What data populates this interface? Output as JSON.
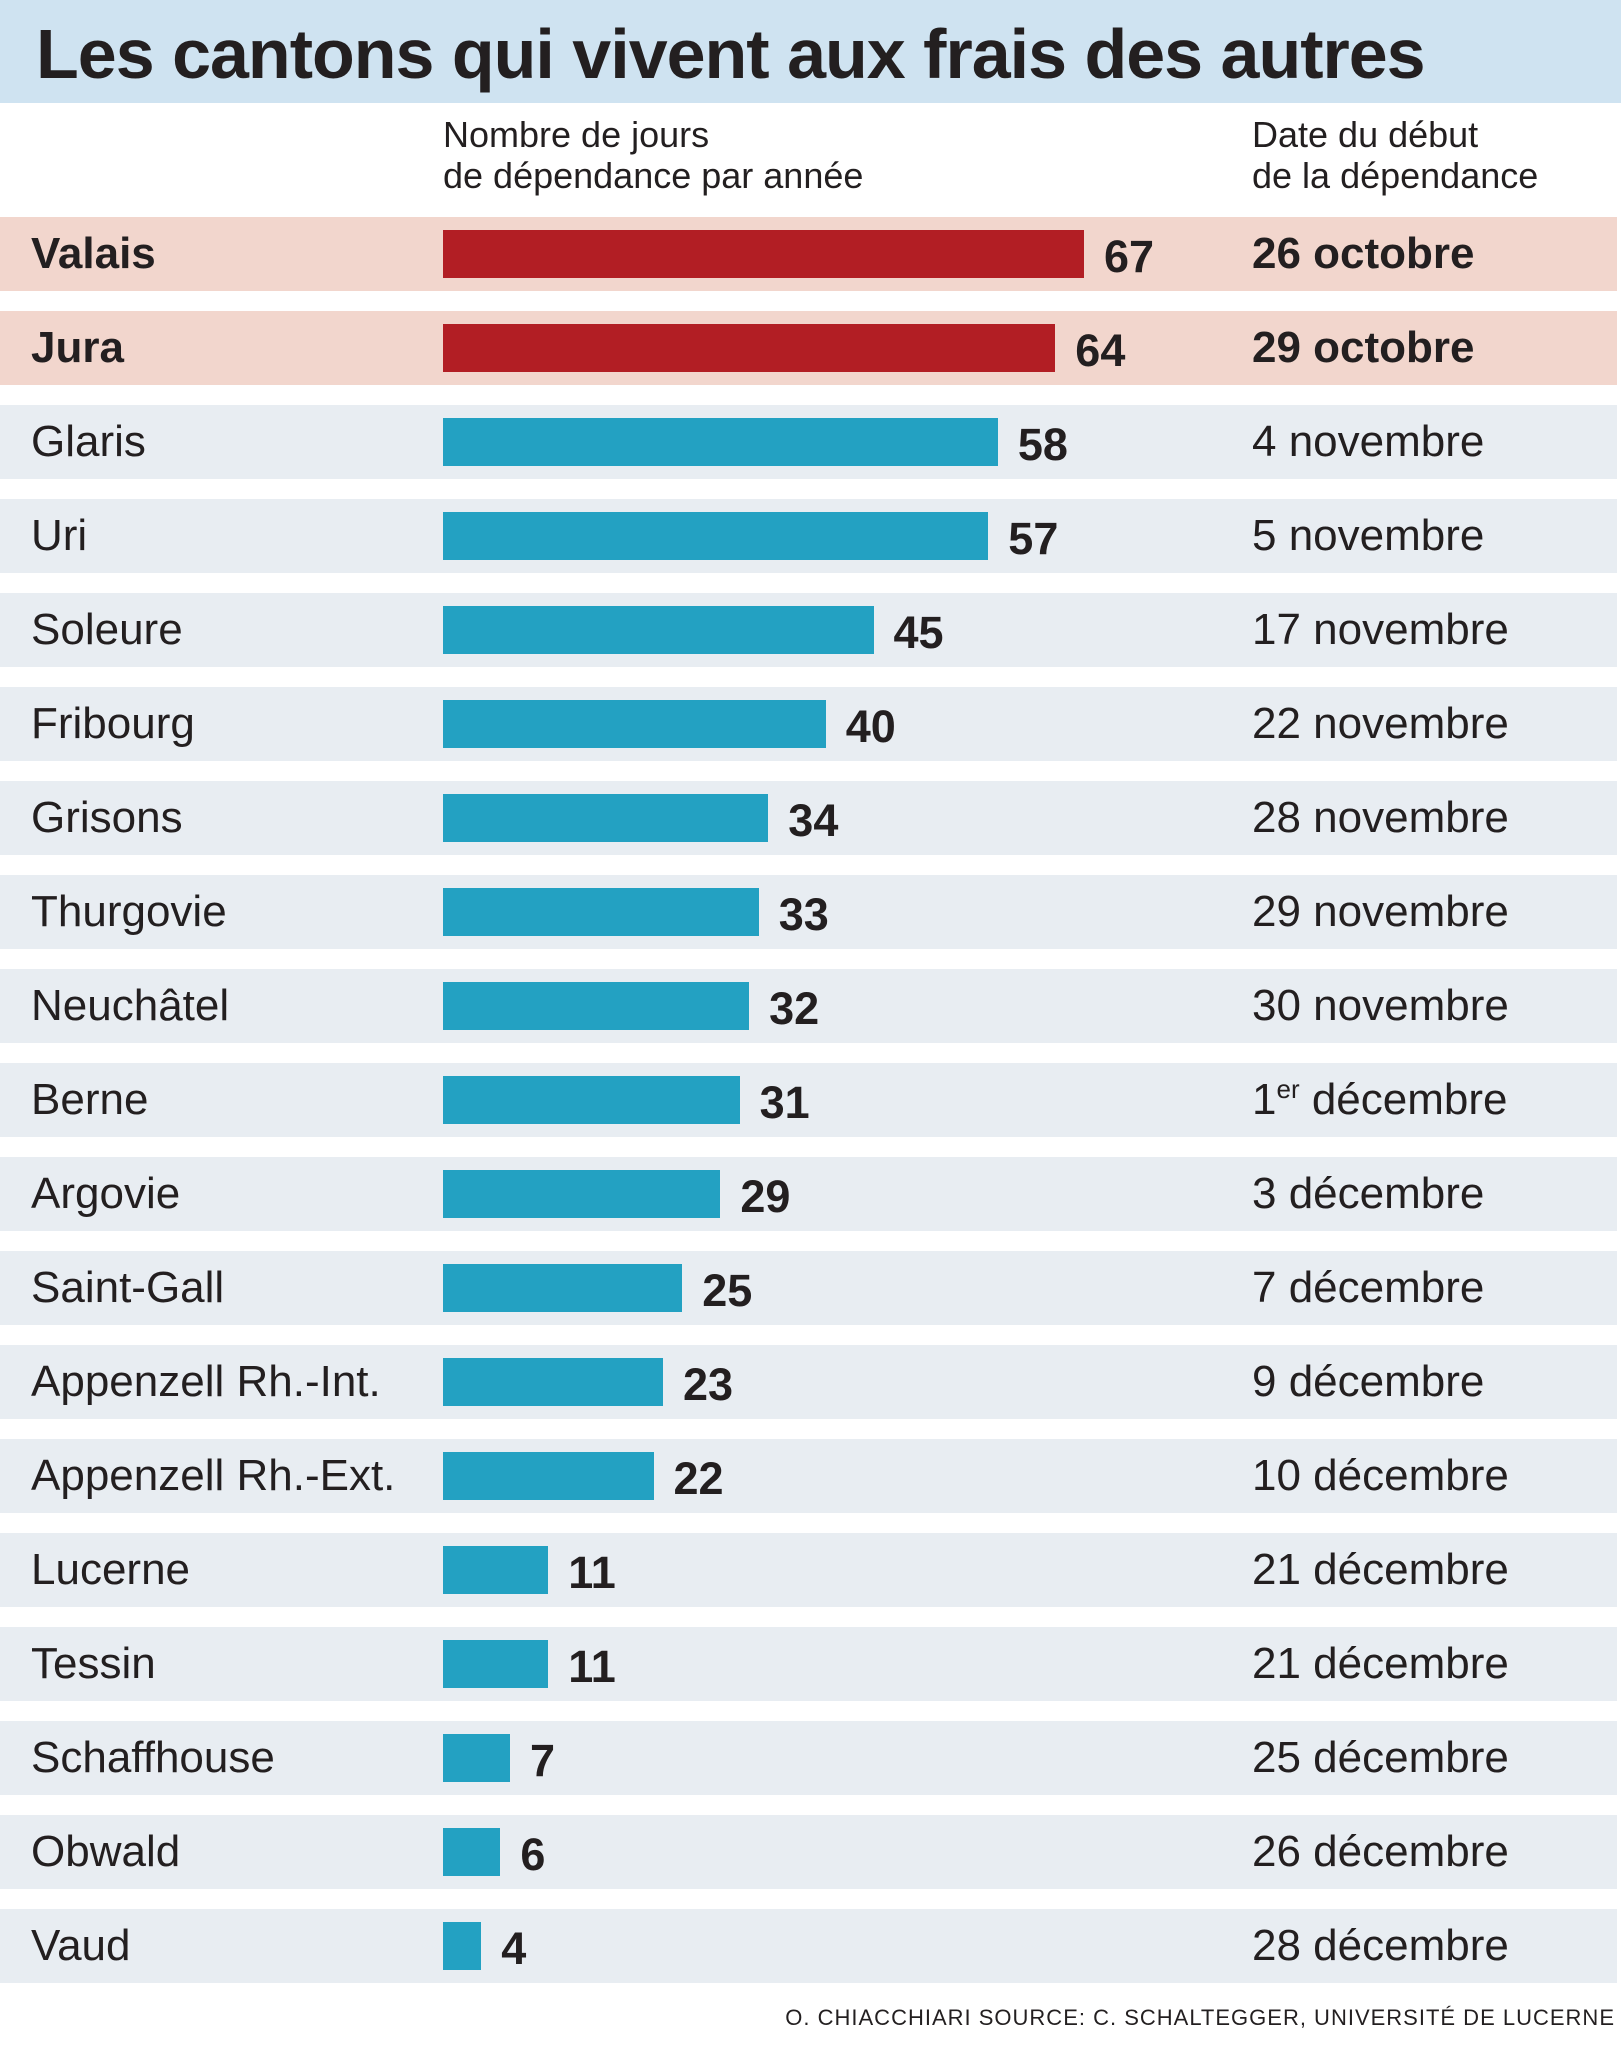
{
  "title": "Les cantons qui vivent aux frais des autres",
  "header": {
    "bars_line1": "Nombre de jours",
    "bars_line2": "de dépendance par année",
    "dates_line1": "Date du début",
    "dates_line2": "de la dépendance"
  },
  "colors": {
    "highlight_bar": "#b21e24",
    "bar": "#23a1c2",
    "highlight_row": "#f2d6cd",
    "row": "#e8edf2",
    "title_band": "#cfe3f1"
  },
  "chart_data": {
    "type": "bar",
    "orientation": "horizontal",
    "title": "Les cantons qui vivent aux frais des autres",
    "xlabel": "Nombre de jours de dépendance par année",
    "xlim": [
      0,
      67
    ],
    "grid": false,
    "legend": "none",
    "rows": [
      {
        "canton": "Valais",
        "days": 67,
        "date": "26 octobre",
        "date_sup": "",
        "date_rest": "",
        "highlight": true
      },
      {
        "canton": "Jura",
        "days": 64,
        "date": "29 octobre",
        "date_sup": "",
        "date_rest": "",
        "highlight": true
      },
      {
        "canton": "Glaris",
        "days": 58,
        "date": "4 novembre",
        "date_sup": "",
        "date_rest": "",
        "highlight": false
      },
      {
        "canton": "Uri",
        "days": 57,
        "date": "5 novembre",
        "date_sup": "",
        "date_rest": "",
        "highlight": false
      },
      {
        "canton": "Soleure",
        "days": 45,
        "date": "17 novembre",
        "date_sup": "",
        "date_rest": "",
        "highlight": false
      },
      {
        "canton": "Fribourg",
        "days": 40,
        "date": "22 novembre",
        "date_sup": "",
        "date_rest": "",
        "highlight": false
      },
      {
        "canton": "Grisons",
        "days": 34,
        "date": "28 novembre",
        "date_sup": "",
        "date_rest": "",
        "highlight": false
      },
      {
        "canton": "Thurgovie",
        "days": 33,
        "date": "29 novembre",
        "date_sup": "",
        "date_rest": "",
        "highlight": false
      },
      {
        "canton": "Neuchâtel",
        "days": 32,
        "date": "30 novembre",
        "date_sup": "",
        "date_rest": "",
        "highlight": false
      },
      {
        "canton": "Berne",
        "days": 31,
        "date": "1",
        "date_sup": "er",
        "date_rest": " décembre",
        "highlight": false
      },
      {
        "canton": "Argovie",
        "days": 29,
        "date": "3 décembre",
        "date_sup": "",
        "date_rest": "",
        "highlight": false
      },
      {
        "canton": "Saint-Gall",
        "days": 25,
        "date": "7 décembre",
        "date_sup": "",
        "date_rest": "",
        "highlight": false
      },
      {
        "canton": "Appenzell Rh.-Int.",
        "days": 23,
        "date": "9 décembre",
        "date_sup": "",
        "date_rest": "",
        "highlight": false
      },
      {
        "canton": "Appenzell Rh.-Ext.",
        "days": 22,
        "date": "10 décembre",
        "date_sup": "",
        "date_rest": "",
        "highlight": false
      },
      {
        "canton": "Lucerne",
        "days": 11,
        "date": "21 décembre",
        "date_sup": "",
        "date_rest": "",
        "highlight": false
      },
      {
        "canton": "Tessin",
        "days": 11,
        "date": "21 décembre",
        "date_sup": "",
        "date_rest": "",
        "highlight": false
      },
      {
        "canton": "Schaffhouse",
        "days": 7,
        "date": "25 décembre",
        "date_sup": "",
        "date_rest": "",
        "highlight": false
      },
      {
        "canton": "Obwald",
        "days": 6,
        "date": "26 décembre",
        "date_sup": "",
        "date_rest": "",
        "highlight": false
      },
      {
        "canton": "Vaud",
        "days": 4,
        "date": "28 décembre",
        "date_sup": "",
        "date_rest": "",
        "highlight": false
      }
    ]
  },
  "credit": "O. CHIACCHIARI  SOURCE: C. SCHALTEGGER, UNIVERSITÉ DE LUCERNE"
}
